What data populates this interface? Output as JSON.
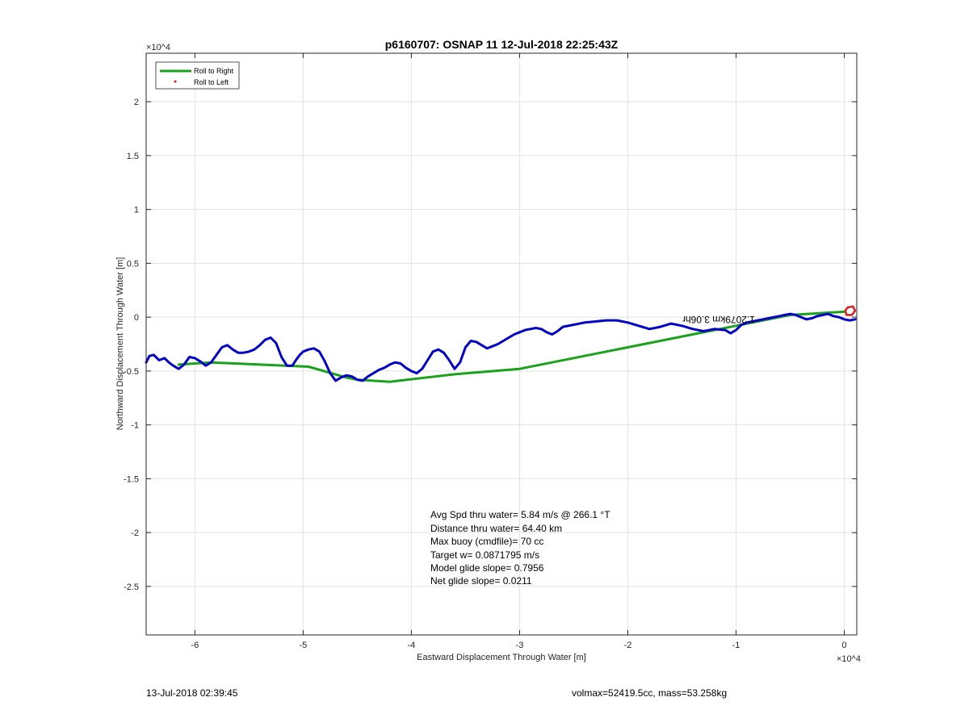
{
  "chart_data": {
    "type": "line",
    "title": "p6160707: OSNAP 11 12-Jul-2018 22:25:43Z",
    "xlabel": "Eastward Displacement Through Water [m]",
    "ylabel": "Northward Displacement Through Water [m]",
    "xlim": [
      -64500,
      1150
    ],
    "ylim": [
      -29500,
      24500
    ],
    "x_exponent_label": "×10^4",
    "y_exponent_label": "×10^4",
    "x_ticks": [
      -60000,
      -50000,
      -40000,
      -30000,
      -20000,
      -10000,
      0
    ],
    "x_tick_labels": [
      "-6",
      "-5",
      "-4",
      "-3",
      "-2",
      "-1",
      "0"
    ],
    "y_ticks": [
      -25000,
      -20000,
      -15000,
      -10000,
      -5000,
      0,
      5000,
      10000,
      15000,
      20000
    ],
    "y_tick_labels": [
      "-2.5",
      "-2",
      "-1.5",
      "-1",
      "-0.5",
      "0",
      "0.5",
      "1",
      "1.5",
      "2"
    ],
    "grid": true,
    "legend_position": "top-left",
    "legend": [
      "Roll to Right",
      "Roll to Left"
    ],
    "series": [
      {
        "name": "Roll to Right",
        "color": "#1aa31a",
        "x": [
          -61500,
          -58500,
          -54000,
          -49500,
          -46000,
          -45000,
          -42000,
          -36000,
          -30000,
          -20000,
          -10000,
          -5000,
          0
        ],
        "y": [
          -4400,
          -4200,
          -4400,
          -4600,
          -5600,
          -5800,
          -6000,
          -5300,
          -4800,
          -2800,
          -800,
          200,
          500
        ]
      },
      {
        "name": "",
        "color": "#0000c8",
        "x": [
          -64500,
          -64200,
          -63800,
          -63300,
          -62800,
          -62400,
          -62000,
          -61500,
          -61000,
          -60500,
          -60000,
          -59500,
          -59000,
          -58500,
          -58000,
          -57500,
          -57000,
          -56500,
          -56000,
          -55500,
          -55000,
          -54500,
          -54000,
          -53500,
          -53000,
          -52500,
          -52000,
          -51500,
          -51000,
          -50600,
          -50300,
          -50000,
          -49500,
          -49000,
          -48500,
          -48000,
          -47500,
          -47000,
          -46500,
          -46000,
          -45500,
          -45000,
          -44500,
          -44000,
          -43500,
          -43000,
          -42500,
          -42000,
          -41500,
          -41000,
          -40500,
          -40000,
          -39500,
          -39000,
          -38500,
          -38000,
          -37500,
          -37000,
          -36500,
          -36000,
          -35500,
          -35000,
          -34500,
          -34000,
          -33500,
          -33000,
          -32500,
          -32000,
          -31500,
          -31000,
          -30500,
          -30000,
          -29500,
          -29000,
          -28500,
          -28000,
          -27500,
          -27000,
          -26500,
          -26000,
          -25000,
          -24000,
          -23000,
          -22000,
          -21000,
          -20000,
          -19000,
          -18000,
          -17000,
          -16000,
          -15000,
          -14000,
          -13000,
          -12000,
          -11000,
          -10500,
          -10000,
          -9500,
          -9000,
          -8500,
          -8000,
          -7500,
          -7000,
          -6500,
          -6000,
          -5500,
          -5000,
          -4500,
          -4000,
          -3500,
          -3000,
          -2500,
          -2000,
          -1500,
          -1000,
          -500,
          0,
          500,
          1000
        ],
        "y": [
          -4200,
          -3600,
          -3500,
          -4000,
          -3800,
          -4200,
          -4500,
          -4800,
          -4400,
          -3700,
          -3800,
          -4100,
          -4500,
          -4200,
          -3500,
          -2800,
          -2600,
          -3000,
          -3300,
          -3300,
          -3200,
          -3000,
          -2600,
          -2100,
          -1900,
          -2400,
          -3700,
          -4500,
          -4500,
          -3900,
          -3500,
          -3200,
          -3000,
          -2900,
          -3200,
          -4100,
          -5200,
          -5900,
          -5600,
          -5400,
          -5500,
          -5800,
          -5900,
          -5500,
          -5200,
          -4900,
          -4700,
          -4400,
          -4200,
          -4300,
          -4700,
          -5000,
          -5200,
          -4800,
          -4000,
          -3200,
          -3000,
          -3300,
          -4000,
          -4800,
          -4200,
          -2800,
          -2200,
          -2300,
          -2600,
          -2900,
          -2700,
          -2500,
          -2200,
          -1900,
          -1600,
          -1400,
          -1200,
          -1100,
          -1000,
          -1100,
          -1400,
          -1600,
          -1300,
          -900,
          -700,
          -500,
          -400,
          -300,
          -300,
          -500,
          -800,
          -1100,
          -900,
          -600,
          -800,
          -1100,
          -1300,
          -1100,
          -1200,
          -1500,
          -1200,
          -700,
          -500,
          -400,
          -300,
          -200,
          -100,
          0,
          100,
          200,
          300,
          200,
          0,
          -200,
          -100,
          100,
          200,
          300,
          100,
          0,
          -200,
          -300,
          -200
        ]
      },
      {
        "name": "",
        "color": "#d62020",
        "x": [
          300,
          800,
          1000,
          700,
          200,
          100,
          300
        ],
        "y": [
          900,
          1000,
          600,
          200,
          200,
          600,
          900
        ]
      }
    ],
    "annotations": {
      "segment_label": "1.2079km 3.06hr",
      "stats": [
        "Avg Spd thru water=  5.84 m/s @ 266.1 °T",
        "Distance thru water= 64.40 km",
        "Max buoy (cmdfile)= 70 cc",
        "Target w= 0.0871795 m/s",
        "Model glide slope= 0.7956",
        "Net glide slope= 0.0211"
      ]
    }
  },
  "footer": {
    "left": "13-Jul-2018 02:39:45",
    "right": "volmax=52419.5cc, mass=53.258kg"
  }
}
